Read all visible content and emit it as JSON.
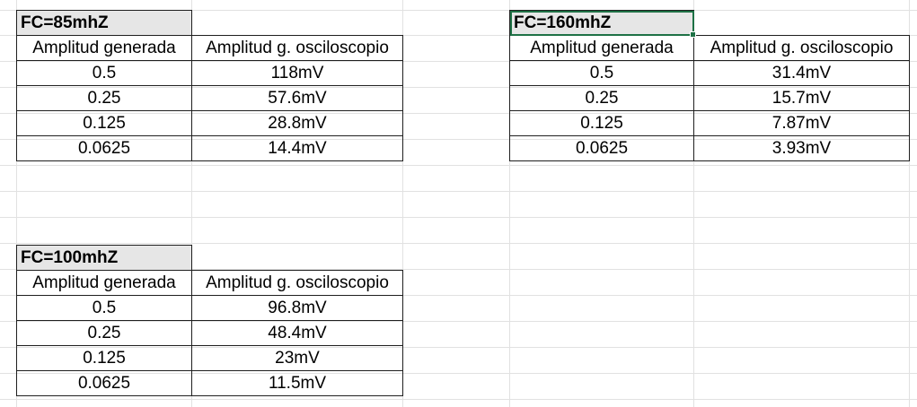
{
  "tables": [
    {
      "title": "FC=85mhZ",
      "headers": [
        "Amplitud generada",
        "Amplitud g. osciloscopio"
      ],
      "rows": [
        [
          "0.5",
          "118mV"
        ],
        [
          "0.25",
          "57.6mV"
        ],
        [
          "0.125",
          "28.8mV"
        ],
        [
          "0.0625",
          "14.4mV"
        ]
      ]
    },
    {
      "title": "FC=160mhZ",
      "headers": [
        "Amplitud generada",
        "Amplitud g. osciloscopio"
      ],
      "rows": [
        [
          "0.5",
          "31.4mV"
        ],
        [
          "0.25",
          "15.7mV"
        ],
        [
          "0.125",
          "7.87mV"
        ],
        [
          "0.0625",
          "3.93mV"
        ]
      ]
    },
    {
      "title": "FC=100mhZ",
      "headers": [
        "Amplitud generada",
        "Amplitud g. osciloscopio"
      ],
      "rows": [
        [
          "0.5",
          "96.8mV"
        ],
        [
          "0.25",
          "48.4mV"
        ],
        [
          "0.125",
          "23mV"
        ],
        [
          "0.0625",
          "11.5mV"
        ]
      ]
    }
  ],
  "colors": {
    "title_fill": "#e6e6e6",
    "selection": "#1e7145",
    "gridline": "#e1e1e1"
  }
}
